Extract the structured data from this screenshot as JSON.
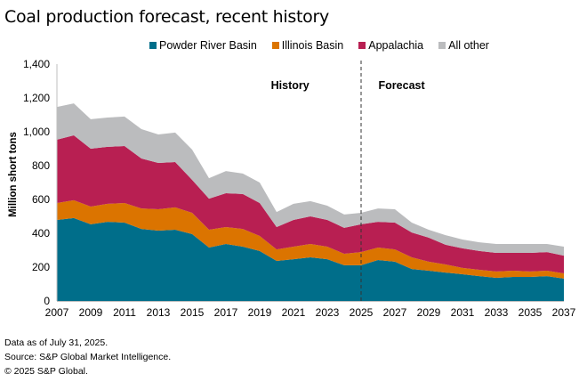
{
  "chart_data": {
    "type": "area",
    "stacked": true,
    "title": "Coal production forecast, recent history",
    "xlabel": "",
    "ylabel": "Million short tons",
    "ylim": [
      0,
      1400
    ],
    "yticks": [
      0,
      200,
      400,
      600,
      800,
      1000,
      1200,
      1400
    ],
    "ytick_labels": [
      "0",
      "200",
      "400",
      "600",
      "800",
      "1,000",
      "1,200",
      "1,400"
    ],
    "xlim": [
      2007,
      2037
    ],
    "xticks": [
      2007,
      2009,
      2011,
      2013,
      2015,
      2017,
      2019,
      2021,
      2023,
      2025,
      2027,
      2029,
      2031,
      2033,
      2035,
      2037
    ],
    "x": [
      2007,
      2008,
      2009,
      2010,
      2011,
      2012,
      2013,
      2014,
      2015,
      2016,
      2017,
      2018,
      2019,
      2020,
      2021,
      2022,
      2023,
      2024,
      2025,
      2026,
      2027,
      2028,
      2029,
      2030,
      2031,
      2032,
      2033,
      2034,
      2035,
      2036,
      2037
    ],
    "series": [
      {
        "name": "Powder River Basin",
        "color": "#006e8a",
        "values": [
          479,
          490,
          453,
          468,
          463,
          426,
          416,
          421,
          395,
          316,
          337,
          321,
          295,
          237,
          247,
          258,
          247,
          211,
          211,
          242,
          232,
          189,
          179,
          168,
          158,
          147,
          137,
          142,
          142,
          147,
          132
        ]
      },
      {
        "name": "Illinois Basin",
        "color": "#db7400",
        "values": [
          100,
          105,
          105,
          106,
          116,
          121,
          126,
          132,
          126,
          105,
          100,
          105,
          89,
          68,
          74,
          79,
          74,
          68,
          78,
          74,
          73,
          69,
          53,
          48,
          37,
          37,
          37,
          37,
          32,
          32,
          31
        ]
      },
      {
        "name": "Appalachia",
        "color": "#b81f52",
        "values": [
          374,
          384,
          342,
          337,
          337,
          295,
          274,
          268,
          195,
          184,
          200,
          206,
          195,
          132,
          158,
          163,
          158,
          153,
          164,
          152,
          158,
          147,
          142,
          116,
          116,
          111,
          110,
          105,
          110,
          110,
          105
        ]
      },
      {
        "name": "All other",
        "color": "#bbbcbe",
        "values": [
          194,
          189,
          174,
          173,
          174,
          174,
          168,
          174,
          179,
          121,
          131,
          121,
          121,
          89,
          95,
          90,
          84,
          79,
          68,
          79,
          79,
          58,
          47,
          57,
          52,
          52,
          53,
          53,
          53,
          48,
          53
        ]
      }
    ],
    "annotations": [
      {
        "text": "History",
        "x": 2020.8
      },
      {
        "text": "Forecast",
        "x": 2027.4
      }
    ],
    "divider_x": 2025,
    "legend_position": "top-center",
    "grid": false
  },
  "legend_items": [
    "Powder River Basin",
    "Illinois Basin",
    "Appalachia",
    "All other"
  ],
  "footer": {
    "line1": "Data as of July 31, 2025.",
    "line2": "Source: S&P Global Market Intelligence.",
    "line3": "© 2025 S&P Global."
  }
}
